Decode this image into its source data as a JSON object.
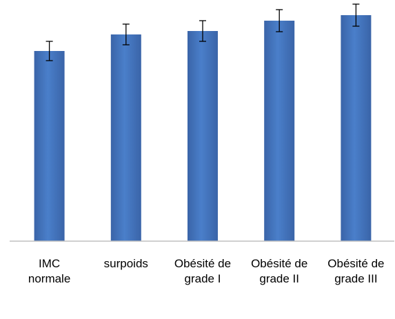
{
  "chart_data": {
    "type": "bar",
    "categories": [
      "IMC normale",
      "surpoids",
      "Obésité de grade I",
      "Obésité de grade II",
      "Obésité de grade III"
    ],
    "values": [
      276,
      300,
      305,
      320,
      328
    ],
    "errors": [
      14,
      15,
      15,
      16,
      16
    ],
    "color": "#3f6fb5",
    "ylim": [
      0,
      350
    ]
  }
}
